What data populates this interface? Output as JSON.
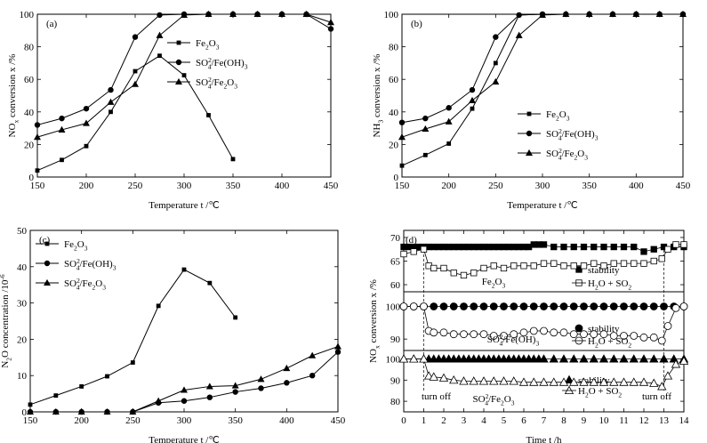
{
  "chart_data": [
    {
      "panel": "(a)",
      "type": "line",
      "xlabel": "Temperature   t /℃",
      "ylabel": "NOx conversion   x /%",
      "xlim": [
        150,
        450
      ],
      "ylim": [
        0,
        100
      ],
      "xticks": [
        150,
        200,
        250,
        300,
        350,
        400,
        450
      ],
      "yticks": [
        0,
        20,
        40,
        60,
        80,
        100
      ],
      "legend_position": "center-right",
      "grid": false,
      "series": [
        {
          "name": "Fe2O3",
          "marker": "square",
          "x": [
            150,
            175,
            200,
            225,
            250,
            275,
            300,
            325,
            350
          ],
          "y": [
            4,
            10.5,
            19,
            40,
            65,
            74.5,
            62.5,
            38,
            11
          ]
        },
        {
          "name": "SO42-/Fe(OH)3",
          "marker": "circle",
          "x": [
            150,
            175,
            200,
            225,
            250,
            275,
            300,
            325,
            350,
            375,
            400,
            425,
            450
          ],
          "y": [
            32,
            36,
            42,
            53.5,
            86,
            99.5,
            100,
            100,
            100,
            100,
            100,
            100,
            91
          ]
        },
        {
          "name": "SO42-/Fe2O3",
          "marker": "triangle",
          "x": [
            150,
            175,
            200,
            225,
            250,
            275,
            300,
            325,
            350,
            375,
            400,
            425,
            450
          ],
          "y": [
            24.5,
            29,
            33,
            46,
            57,
            87,
            99.5,
            100,
            100,
            100,
            100,
            100,
            95
          ]
        }
      ]
    },
    {
      "panel": "(b)",
      "type": "line",
      "xlabel": "Temperature   t /℃",
      "ylabel": "NH3 conversion   x /%",
      "xlim": [
        150,
        450
      ],
      "ylim": [
        0,
        100
      ],
      "xticks": [
        150,
        200,
        250,
        300,
        350,
        400,
        450
      ],
      "yticks": [
        0,
        20,
        40,
        60,
        80,
        100
      ],
      "legend_position": "center-right",
      "grid": false,
      "series": [
        {
          "name": "Fe2O3",
          "marker": "square",
          "x": [
            150,
            175,
            200,
            225,
            250,
            275,
            300,
            325,
            350,
            375,
            400,
            425,
            450
          ],
          "y": [
            7,
            13.5,
            20.5,
            42,
            70,
            99.5,
            100,
            100,
            100,
            100,
            100,
            100,
            100
          ]
        },
        {
          "name": "SO42-/Fe(OH)3",
          "marker": "circle",
          "x": [
            150,
            175,
            200,
            225,
            250,
            275,
            300,
            325,
            350,
            375,
            400,
            425,
            450
          ],
          "y": [
            33.5,
            36,
            42.5,
            53.5,
            86,
            99.5,
            100,
            100,
            100,
            100,
            100,
            100,
            100
          ]
        },
        {
          "name": "SO42-/Fe2O3",
          "marker": "triangle",
          "x": [
            150,
            175,
            200,
            225,
            250,
            275,
            300,
            325,
            350,
            375,
            400,
            425,
            450
          ],
          "y": [
            24.5,
            29.5,
            34,
            47,
            58.5,
            87,
            99.5,
            100,
            100,
            100,
            100,
            100,
            100
          ]
        }
      ]
    },
    {
      "panel": "(c)",
      "type": "line",
      "xlabel": "Temperature   t /℃",
      "ylabel": "N2O concentration /10-6",
      "xlim": [
        150,
        450
      ],
      "ylim": [
        0,
        50
      ],
      "xticks": [
        150,
        200,
        250,
        300,
        350,
        400,
        450
      ],
      "yticks": [
        0,
        10,
        20,
        30,
        40,
        50
      ],
      "legend_position": "top-left",
      "grid": false,
      "series": [
        {
          "name": "Fe2O3",
          "marker": "square",
          "x": [
            150,
            175,
            200,
            225,
            250,
            275,
            300,
            325,
            350
          ],
          "y": [
            2,
            4.5,
            7,
            9.8,
            13.6,
            29.2,
            39.2,
            35.5,
            26
          ]
        },
        {
          "name": "SO42-/Fe(OH)3",
          "marker": "circle",
          "x": [
            150,
            175,
            200,
            225,
            250,
            275,
            300,
            325,
            350,
            375,
            400,
            425,
            450
          ],
          "y": [
            0,
            0,
            0,
            0,
            0,
            2.5,
            3,
            4,
            5.5,
            6.5,
            8,
            10,
            16.5
          ]
        },
        {
          "name": "SO42-/Fe2O3",
          "marker": "triangle",
          "x": [
            150,
            175,
            200,
            225,
            250,
            275,
            300,
            325,
            350,
            375,
            400,
            425,
            450
          ],
          "y": [
            0,
            0,
            0,
            0,
            0,
            3,
            6,
            7,
            7.2,
            9,
            12,
            15.5,
            18
          ]
        }
      ]
    },
    {
      "panel": "(d)",
      "type": "line",
      "xlabel": "Time   t /h",
      "ylabel": "NOx conversion   x /%",
      "xlim": [
        0,
        14
      ],
      "xticks": [
        0,
        1,
        2,
        3,
        4,
        5,
        6,
        7,
        8,
        9,
        10,
        11,
        12,
        13,
        14
      ],
      "annotations": [
        "turn off",
        "turn off"
      ],
      "annotation_x": [
        1,
        13
      ],
      "legend_entries": [
        "stability",
        "H2O + SO2"
      ],
      "subpanels": [
        {
          "label": "Fe2O3",
          "yticks": [
            60,
            65,
            70
          ],
          "ylim": [
            58.5,
            71.5
          ],
          "series": [
            {
              "name": "stability",
              "marker": "filled-square",
              "x": [
                0,
                0.25,
                0.5,
                0.75,
                1,
                1.25,
                1.5,
                1.75,
                2,
                2.25,
                2.5,
                2.75,
                3,
                3.25,
                3.5,
                3.75,
                4,
                4.25,
                4.5,
                4.75,
                5,
                5.25,
                5.5,
                5.75,
                6,
                6.25,
                6.5,
                6.75,
                7,
                7.5,
                8,
                8.5,
                9,
                9.5,
                10,
                10.5,
                11,
                11.5,
                12,
                12.5,
                13,
                13.5,
                14
              ],
              "y": [
                68,
                68,
                68,
                68,
                68,
                68,
                68,
                68,
                68,
                68,
                68,
                68,
                68,
                68,
                68,
                68,
                68,
                68,
                68,
                68,
                68,
                68,
                68,
                68,
                68,
                68,
                68.5,
                68.5,
                68.5,
                68,
                68,
                68,
                68,
                68,
                68,
                68,
                68,
                68,
                67,
                67.5,
                68,
                68,
                68
              ]
            },
            {
              "name": "H2O + SO2",
              "marker": "open-square",
              "x": [
                0,
                0.5,
                1,
                1.25,
                1.5,
                2,
                2.5,
                3,
                3.5,
                4,
                4.5,
                5,
                5.5,
                6,
                6.5,
                7,
                7.5,
                8,
                8.5,
                9,
                9.5,
                10,
                10.5,
                11,
                11.5,
                12,
                12.5,
                12.9,
                13.2,
                13.6,
                14
              ],
              "y": [
                66.5,
                67,
                67.5,
                64,
                63.5,
                63.5,
                62.5,
                62,
                62.5,
                63.5,
                64,
                63.5,
                64,
                64,
                64,
                64.5,
                64.5,
                64,
                64,
                64,
                64.5,
                64,
                64.5,
                64.5,
                64.5,
                64.5,
                65,
                65.5,
                67.5,
                68.5,
                68.5
              ]
            }
          ]
        },
        {
          "label": "SO42-/Fe(OH)3",
          "yticks": [
            90,
            100
          ],
          "ylim": [
            86.5,
            104.5
          ],
          "series": [
            {
              "name": "stability",
              "marker": "filled-circle",
              "x": [
                0,
                0.5,
                1,
                1.5,
                2,
                2.5,
                3,
                3.5,
                4,
                4.5,
                5,
                5.5,
                6,
                6.5,
                7,
                7.5,
                8,
                8.5,
                9,
                9.5,
                10,
                10.5,
                11,
                11.5,
                12,
                12.5,
                13,
                13.5,
                14
              ],
              "y": [
                100,
                100,
                100,
                100,
                100,
                100,
                100,
                100,
                100,
                100,
                100,
                100,
                100,
                100,
                100,
                100,
                100,
                100,
                100,
                100,
                100,
                100,
                100,
                100,
                100,
                100,
                100,
                100,
                100
              ]
            },
            {
              "name": "H2O + SO2",
              "marker": "open-circle",
              "x": [
                0,
                0.5,
                1,
                1.25,
                1.5,
                2,
                2.5,
                3,
                3.5,
                4,
                4.5,
                5,
                5.5,
                6,
                6.5,
                7,
                7.5,
                8,
                8.5,
                9,
                9.5,
                10,
                10.5,
                11,
                11.5,
                12,
                12.5,
                12.9,
                13.2,
                13.6,
                14
              ],
              "y": [
                100,
                100,
                100,
                92.5,
                92,
                92,
                91.5,
                91.5,
                91.5,
                91.5,
                91,
                91,
                91.5,
                92,
                92.5,
                92.5,
                92,
                92,
                91.5,
                91.5,
                91.5,
                91.5,
                91,
                91,
                91,
                90.5,
                90.5,
                89.5,
                94,
                99.5,
                100
              ]
            }
          ]
        },
        {
          "label": "SO42-/Fe2O3",
          "yticks": [
            80,
            90,
            100
          ],
          "ylim": [
            75,
            104
          ],
          "series": [
            {
              "name": "stability",
              "marker": "filled-triangle",
              "x": [
                0,
                0.5,
                1,
                1.25,
                1.5,
                1.75,
                2,
                2.25,
                2.5,
                2.75,
                3,
                3.25,
                3.5,
                3.75,
                4,
                4.25,
                4.5,
                4.75,
                5,
                5.25,
                5.5,
                5.75,
                6,
                6.25,
                6.5,
                6.75,
                7,
                7.5,
                8,
                8.5,
                9,
                9.5,
                10,
                10.5,
                11,
                11.5,
                12,
                12.5,
                13,
                13.5,
                14
              ],
              "y": [
                100,
                100,
                100,
                100,
                100,
                100,
                100,
                100,
                100,
                100,
                100,
                100,
                100,
                100,
                100,
                100,
                100,
                100,
                100,
                100,
                100,
                100,
                100,
                100,
                100,
                100,
                100,
                100,
                100,
                100,
                100,
                100,
                100,
                100,
                100,
                100,
                100,
                100,
                100,
                100,
                100
              ]
            },
            {
              "name": "H2O + SO2",
              "marker": "open-triangle",
              "x": [
                0,
                0.5,
                1,
                1.25,
                1.5,
                2,
                2.5,
                3,
                3.5,
                4,
                4.5,
                5,
                5.5,
                6,
                6.5,
                7,
                7.5,
                8,
                8.5,
                9,
                9.5,
                10,
                10.5,
                11,
                11.5,
                12,
                12.5,
                12.9,
                13.2,
                13.6,
                14
              ],
              "y": [
                100,
                100,
                100,
                92,
                91.5,
                91,
                90,
                89.5,
                89.5,
                89.5,
                89.5,
                89.5,
                89.5,
                89,
                89,
                89,
                89,
                89,
                89,
                89,
                89,
                89,
                89,
                89,
                89,
                89,
                88.5,
                87,
                92,
                97.5,
                99
              ]
            }
          ]
        }
      ]
    }
  ]
}
